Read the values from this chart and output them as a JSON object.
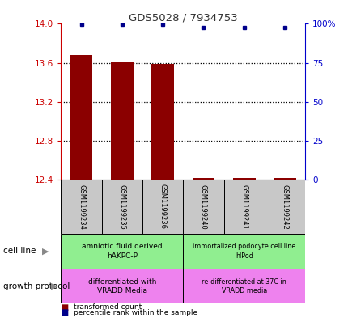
{
  "title": "GDS5028 / 7934753",
  "samples": [
    "GSM1199234",
    "GSM1199235",
    "GSM1199236",
    "GSM1199240",
    "GSM1199241",
    "GSM1199242"
  ],
  "bar_values": [
    13.68,
    13.605,
    13.585,
    12.415,
    12.42,
    12.42
  ],
  "bar_bottom": 12.4,
  "percentile_values": [
    99.5,
    99.5,
    99.5,
    97.5,
    97.5,
    97.5
  ],
  "ylim": [
    12.4,
    14.0
  ],
  "yticks_left": [
    12.4,
    12.8,
    13.2,
    13.6,
    14.0
  ],
  "yticks_right": [
    0,
    25,
    50,
    75,
    100
  ],
  "yticks_right_labels": [
    "0",
    "25",
    "50",
    "75",
    "100%"
  ],
  "cell_line_labels": [
    "amniotic fluid derived\nhAKPC-P",
    "immortalized podocyte cell line\nhIPod"
  ],
  "cell_line_color": "#90EE90",
  "growth_protocol_labels": [
    "differentiated with\nVRADD Media",
    "re-differentiated at 37C in\nVRADD media"
  ],
  "growth_protocol_color": "#EE82EE",
  "bar_color": "#8B0000",
  "percentile_color": "#00008B",
  "sample_box_color": "#C8C8C8",
  "left_axis_color": "#CC0000",
  "right_axis_color": "#0000CC",
  "title_color": "#333333",
  "grid_dotted_at": [
    13.6,
    13.2,
    12.8
  ],
  "left_label_color": "#888888"
}
